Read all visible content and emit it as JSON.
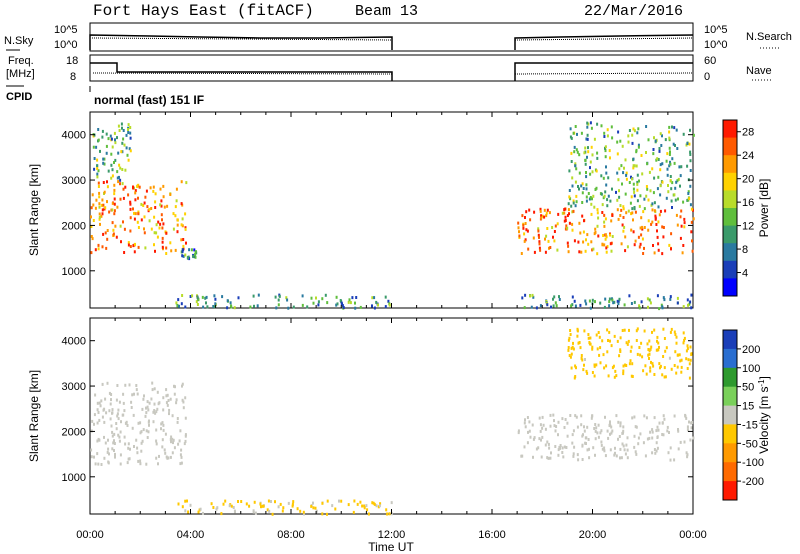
{
  "header": {
    "title": "Fort Hays East (fitACF)",
    "beam": "Beam 13",
    "date": "22/Mar/2016"
  },
  "top_panels": {
    "nsky": {
      "left_label": "N.Sky",
      "left_ticks": [
        "10^5",
        "10^0"
      ],
      "right_ticks": [
        "10^5",
        "10^0"
      ],
      "right_label": "N.Search"
    },
    "freq": {
      "left_label_1": "Freq.",
      "left_label_2": "[MHz]",
      "left_ticks": [
        "18",
        "8"
      ],
      "right_ticks": [
        "60",
        "0"
      ],
      "right_label": "Nave"
    },
    "cpid": {
      "label": "CPID",
      "text": "normal (fast) 151 IF"
    }
  },
  "colorbars": {
    "power": {
      "label": "Power [dB]",
      "ticks": [
        "28",
        "24",
        "20",
        "16",
        "12",
        "8",
        "4"
      ],
      "colors": [
        "#ff1a00",
        "#ff5a00",
        "#ff9a00",
        "#ffd200",
        "#b8dc2a",
        "#5fbe3c",
        "#3a9a6a",
        "#2a7aa0",
        "#1a3eb8",
        "#0000ff"
      ]
    },
    "velocity": {
      "label_main": "Velocity [m s",
      "label_sup": "-1",
      "label_end": "]",
      "ticks": [
        "200",
        "100",
        "50",
        "15",
        "-15",
        "-50",
        "-100",
        "-200"
      ],
      "colors": [
        "#1a3eb8",
        "#2a6ed0",
        "#2e9a2e",
        "#7ad05a",
        "#c8c8c0",
        "#ffc800",
        "#ff9a00",
        "#ff6a00",
        "#ff1a00"
      ]
    }
  },
  "chart_data": [
    {
      "type": "heatmap",
      "title": "",
      "xlabel": "Time UT",
      "ylabel": "Slant Range [km]",
      "x_ticks": [
        "00:00",
        "04:00",
        "08:00",
        "12:00",
        "16:00",
        "20:00",
        "00:00"
      ],
      "xlim_hours": [
        0,
        24
      ],
      "ylim_km": [
        180,
        4500
      ],
      "y_ticks": [
        1000,
        2000,
        3000,
        4000
      ],
      "colorbar": "Power [dB]",
      "zlim": [
        0,
        30
      ],
      "data_gap_hours": [
        12,
        17
      ],
      "echo_bands": [
        {
          "hours": [
            0,
            3.8
          ],
          "range_km": [
            1400,
            3000
          ],
          "power_db": 25
        },
        {
          "hours": [
            0.1,
            1.6
          ],
          "range_km": [
            3000,
            4300
          ],
          "power_db": 12
        },
        {
          "hours": [
            3.6,
            4.2
          ],
          "range_km": [
            1300,
            1500
          ],
          "power_db": 8
        },
        {
          "hours": [
            3.3,
            12
          ],
          "range_km": [
            200,
            500
          ],
          "power_db": 10
        },
        {
          "hours": [
            17,
            24
          ],
          "range_km": [
            1400,
            2400
          ],
          "power_db": 25
        },
        {
          "hours": [
            19,
            24
          ],
          "range_km": [
            2400,
            4300
          ],
          "power_db": 12
        },
        {
          "hours": [
            17,
            24
          ],
          "range_km": [
            200,
            500
          ],
          "power_db": 10
        }
      ]
    },
    {
      "type": "heatmap",
      "title": "",
      "xlabel": "Time UT",
      "ylabel": "Slant Range [km]",
      "x_ticks": [
        "00:00",
        "04:00",
        "08:00",
        "12:00",
        "16:00",
        "20:00",
        "00:00"
      ],
      "xlim_hours": [
        0,
        24
      ],
      "ylim_km": [
        180,
        4500
      ],
      "y_ticks": [
        1000,
        2000,
        3000,
        4000
      ],
      "colorbar": "Velocity [m s-1]",
      "zlim": [
        -250,
        250
      ],
      "data_gap_hours": [
        12,
        17
      ],
      "echo_bands": [
        {
          "hours": [
            0,
            3.8
          ],
          "range_km": [
            1300,
            3100
          ],
          "velocity": 0
        },
        {
          "hours": [
            3.3,
            12
          ],
          "range_km": [
            200,
            500
          ],
          "velocity": -40
        },
        {
          "hours": [
            17,
            24
          ],
          "range_km": [
            1400,
            2400
          ],
          "velocity": 0
        },
        {
          "hours": [
            19,
            24
          ],
          "range_km": [
            3200,
            4300
          ],
          "velocity": -60
        }
      ]
    }
  ]
}
